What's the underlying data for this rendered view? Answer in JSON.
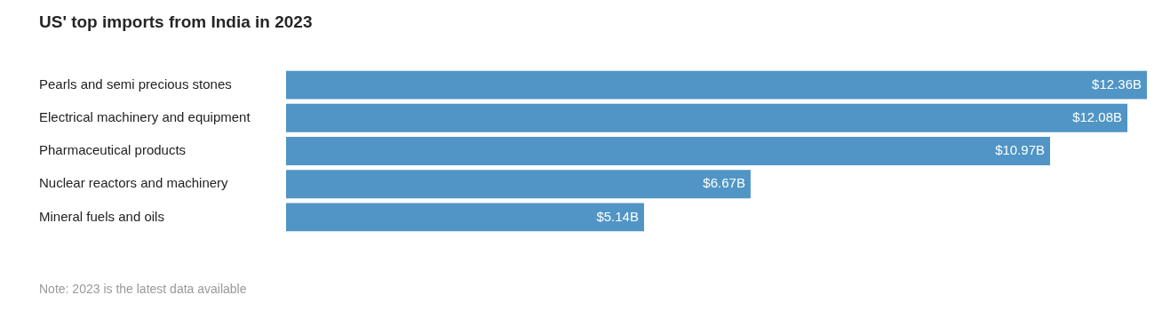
{
  "chart_data": {
    "type": "bar",
    "orientation": "horizontal",
    "title": "US' top imports from India in 2023",
    "categories": [
      "Pearls and semi precious stones",
      "Electrical machinery and equipment",
      "Pharmaceutical products",
      "Nuclear reactors and machinery",
      "Mineral fuels and oils"
    ],
    "values": [
      12.36,
      12.08,
      10.97,
      6.67,
      5.14
    ],
    "value_labels": [
      "$12.36B",
      "$12.08B",
      "$10.97B",
      "$6.67B",
      "$5.14B"
    ],
    "color": "#5095c5",
    "legend": false,
    "annotations": [
      "Note: 2023 is the latest data available"
    ]
  }
}
